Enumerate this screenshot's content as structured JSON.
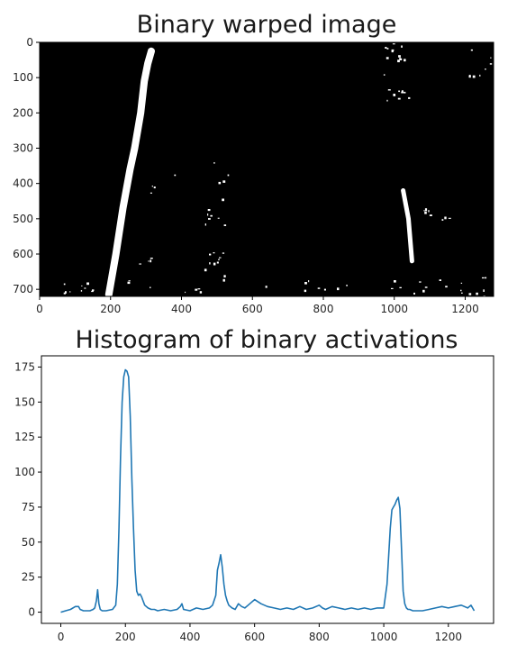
{
  "chart_data": [
    {
      "type": "image",
      "title": "Binary warped image",
      "xlabel": "",
      "ylabel": "",
      "xlim": [
        0,
        1280
      ],
      "ylim": [
        720,
        0
      ],
      "xticks": [
        "0",
        "200",
        "400",
        "600",
        "800",
        "1000",
        "1200"
      ],
      "yticks": [
        "0",
        "100",
        "200",
        "300",
        "400",
        "500",
        "600",
        "700"
      ],
      "colors": {
        "background": "#000000",
        "foreground": "#ffffff"
      },
      "lane_lines": [
        {
          "name": "left lane",
          "points": [
            [
              195,
              715
            ],
            [
              215,
              600
            ],
            [
              235,
              470
            ],
            [
              255,
              360
            ],
            [
              268,
              300
            ],
            [
              285,
              200
            ],
            [
              295,
              110
            ],
            [
              305,
              60
            ],
            [
              315,
              25
            ]
          ]
        },
        {
          "name": "right lane",
          "points": [
            [
              1050,
              620
            ],
            [
              1040,
              500
            ],
            [
              1025,
              420
            ]
          ]
        }
      ]
    },
    {
      "type": "line",
      "title": "Histogram of binary activations",
      "xlabel": "",
      "ylabel": "",
      "xlim": [
        -60,
        1340
      ],
      "ylim": [
        -8,
        183
      ],
      "xticks": [
        "0",
        "200",
        "400",
        "600",
        "800",
        "1000",
        "1200"
      ],
      "yticks": [
        "0",
        "25",
        "50",
        "75",
        "100",
        "125",
        "150",
        "175"
      ],
      "grid": false,
      "series": [
        {
          "color": "#1f77b4",
          "x": [
            0,
            15,
            30,
            45,
            55,
            60,
            70,
            90,
            100,
            105,
            110,
            114,
            118,
            122,
            128,
            140,
            160,
            170,
            175,
            180,
            185,
            190,
            195,
            200,
            205,
            210,
            215,
            220,
            225,
            230,
            235,
            240,
            245,
            250,
            255,
            260,
            270,
            280,
            290,
            300,
            320,
            340,
            360,
            370,
            375,
            380,
            400,
            420,
            440,
            460,
            470,
            480,
            485,
            490,
            495,
            500,
            505,
            510,
            515,
            520,
            530,
            540,
            550,
            560,
            570,
            580,
            590,
            600,
            620,
            640,
            660,
            680,
            700,
            720,
            740,
            760,
            780,
            800,
            810,
            820,
            840,
            860,
            880,
            900,
            920,
            940,
            960,
            980,
            1000,
            1010,
            1020,
            1025,
            1030,
            1035,
            1040,
            1045,
            1050,
            1055,
            1060,
            1065,
            1070,
            1075,
            1080,
            1090,
            1100,
            1120,
            1140,
            1160,
            1180,
            1200,
            1220,
            1240,
            1260,
            1270,
            1280
          ],
          "y": [
            0,
            1,
            2,
            4,
            4,
            2,
            1,
            1,
            2,
            3,
            8,
            16,
            6,
            2,
            1,
            1,
            2,
            5,
            20,
            60,
            110,
            150,
            168,
            173,
            172,
            168,
            140,
            95,
            60,
            30,
            15,
            12,
            13,
            11,
            8,
            5,
            3,
            2,
            2,
            1,
            2,
            1,
            2,
            4,
            6,
            2,
            1,
            3,
            2,
            3,
            5,
            12,
            30,
            35,
            41,
            32,
            20,
            12,
            8,
            5,
            3,
            2,
            6,
            4,
            3,
            5,
            7,
            9,
            6,
            4,
            3,
            2,
            3,
            2,
            4,
            2,
            3,
            5,
            3,
            2,
            4,
            3,
            2,
            3,
            2,
            3,
            2,
            3,
            3,
            20,
            60,
            73,
            75,
            77,
            80,
            82,
            74,
            45,
            15,
            6,
            3,
            2,
            2,
            1,
            1,
            1,
            2,
            3,
            4,
            3,
            4,
            5,
            3,
            5,
            1
          ]
        }
      ]
    }
  ]
}
